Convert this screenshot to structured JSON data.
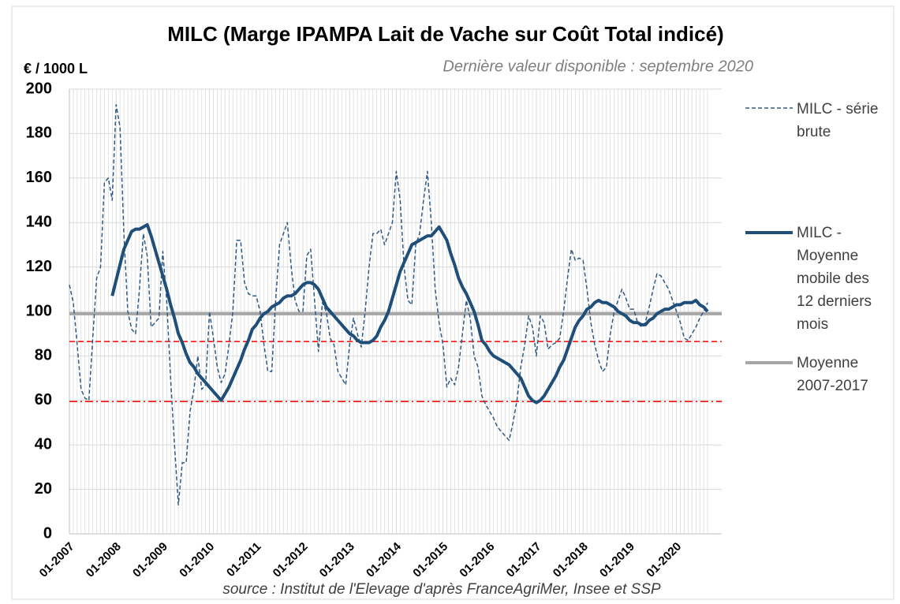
{
  "chart_data": {
    "type": "line",
    "title": "MILC (Marge IPAMPA Lait de Vache sur Coût Total indicé)",
    "y_label": "€ / 1000 L",
    "subtitle": "Dernière valeur disponible : septembre 2020",
    "source": "source : Institut de l'Elevage d'après FranceAgriMer, Insee et SSP",
    "ylim": [
      0,
      200
    ],
    "yticks": [
      0,
      20,
      40,
      60,
      80,
      100,
      120,
      140,
      160,
      180,
      200
    ],
    "grid": true,
    "categories": [
      "01-2007",
      null,
      null,
      null,
      null,
      null,
      null,
      null,
      null,
      null,
      null,
      null,
      "01-2008",
      null,
      null,
      null,
      null,
      null,
      null,
      null,
      null,
      null,
      null,
      null,
      "01-2009",
      null,
      null,
      null,
      null,
      null,
      null,
      null,
      null,
      null,
      null,
      null,
      "01-2010",
      null,
      null,
      null,
      null,
      null,
      null,
      null,
      null,
      null,
      null,
      null,
      "01-2011",
      null,
      null,
      null,
      null,
      null,
      null,
      null,
      null,
      null,
      null,
      null,
      "01-2012",
      null,
      null,
      null,
      null,
      null,
      null,
      null,
      null,
      null,
      null,
      null,
      "01-2013",
      null,
      null,
      null,
      null,
      null,
      null,
      null,
      null,
      null,
      null,
      null,
      "01-2014",
      null,
      null,
      null,
      null,
      null,
      null,
      null,
      null,
      null,
      null,
      null,
      "01-2015",
      null,
      null,
      null,
      null,
      null,
      null,
      null,
      null,
      null,
      null,
      null,
      "01-2016",
      null,
      null,
      null,
      null,
      null,
      null,
      null,
      null,
      null,
      null,
      null,
      "01-2017",
      null,
      null,
      null,
      null,
      null,
      null,
      null,
      null,
      null,
      null,
      null,
      "01-2018",
      null,
      null,
      null,
      null,
      null,
      null,
      null,
      null,
      null,
      null,
      null,
      "01-2019",
      null,
      null,
      null,
      null,
      null,
      null,
      null,
      null,
      null,
      null,
      null,
      "01-2020",
      null,
      null,
      null,
      null,
      null,
      null,
      null,
      null
    ],
    "series": [
      {
        "name": "MILC - série brute",
        "color": "#2e5a87",
        "width": 1.5,
        "dash": "5,3",
        "values": [
          112,
          104,
          85,
          65,
          61,
          60,
          88,
          115,
          120,
          158,
          160,
          150,
          193,
          183,
          135,
          100,
          92,
          90,
          110,
          135,
          125,
          93,
          95,
          97,
          127,
          105,
          70,
          40,
          13,
          32,
          32,
          55,
          65,
          80,
          65,
          67,
          100,
          88,
          75,
          68,
          72,
          85,
          100,
          132,
          132,
          113,
          108,
          107,
          107,
          100,
          85,
          73,
          73,
          105,
          130,
          135,
          140,
          120,
          105,
          100,
          100,
          125,
          128,
          105,
          82,
          104,
          100,
          88,
          85,
          73,
          70,
          67,
          85,
          97,
          90,
          84,
          100,
          120,
          135,
          135,
          137,
          130,
          135,
          140,
          163,
          150,
          120,
          105,
          103,
          130,
          135,
          150,
          163,
          140,
          110,
          95,
          85,
          66,
          70,
          67,
          75,
          90,
          105,
          97,
          80,
          75,
          62,
          58,
          55,
          52,
          48,
          46,
          44,
          42,
          50,
          60,
          75,
          85,
          98,
          93,
          80,
          98,
          95,
          83,
          85,
          86,
          88,
          100,
          115,
          128,
          123,
          124,
          123,
          110,
          95,
          85,
          78,
          73,
          75,
          90,
          100,
          105,
          110,
          106,
          101,
          101,
          95,
          93,
          95,
          102,
          110,
          117,
          116,
          113,
          110,
          105,
          100,
          95,
          88,
          87,
          90,
          93,
          97,
          100,
          104
        ]
      },
      {
        "name": "MILC - Moyenne mobile des 12 derniers mois",
        "color": "#1f4e79",
        "width": 4,
        "values": [
          null,
          null,
          null,
          null,
          null,
          null,
          null,
          null,
          null,
          null,
          null,
          107,
          114,
          121,
          128,
          132,
          136,
          137,
          137,
          138,
          139,
          134,
          128,
          122,
          116,
          110,
          103,
          97,
          90,
          86,
          81,
          77,
          75,
          72,
          70,
          68,
          66,
          64,
          62,
          60,
          63,
          66,
          70,
          74,
          78,
          83,
          87,
          92,
          94,
          97,
          99,
          100,
          102,
          103,
          104,
          106,
          107,
          107,
          108,
          110,
          112,
          113,
          113,
          112,
          110,
          106,
          102,
          100,
          98,
          96,
          94,
          92,
          90,
          89,
          87,
          86,
          86,
          86,
          87,
          89,
          93,
          96,
          100,
          106,
          112,
          118,
          122,
          126,
          130,
          131,
          132,
          133,
          134,
          134,
          136,
          138,
          135,
          132,
          126,
          121,
          115,
          111,
          108,
          104,
          100,
          94,
          87,
          85,
          82,
          80,
          79,
          78,
          77,
          76,
          74,
          72,
          70,
          66,
          62,
          60,
          59,
          60,
          62,
          65,
          68,
          71,
          75,
          78,
          83,
          88,
          93,
          96,
          98,
          101,
          102,
          104,
          105,
          104,
          104,
          103,
          102,
          100,
          99,
          98,
          96,
          95,
          95,
          94,
          94,
          96,
          97,
          99,
          100,
          101,
          101,
          102,
          103,
          103,
          104,
          104,
          104,
          105,
          103,
          102,
          100
        ]
      }
    ],
    "hlines": [
      {
        "name": "Moyenne 2007-2017",
        "value": 99,
        "color": "#a6a6a6",
        "width": 4
      },
      {
        "value": 86.5,
        "color": "#ff0000",
        "width": 1.5,
        "dash": "7,4"
      },
      {
        "value": 59.5,
        "color": "#ff0000",
        "width": 1.5,
        "dash": "10,4,2,4"
      }
    ]
  }
}
